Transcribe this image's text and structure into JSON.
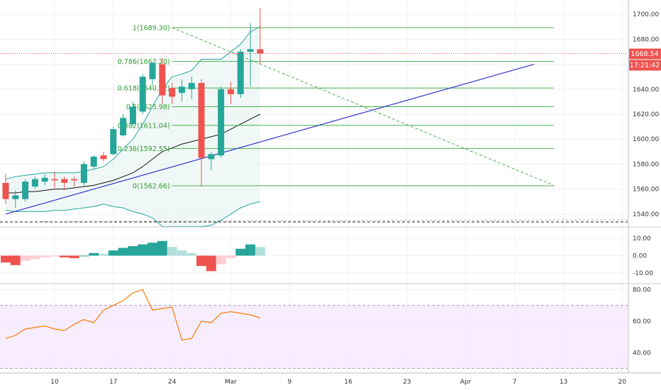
{
  "chart_data": {
    "type": "candlestick",
    "price_axis": {
      "range": [
        1532,
        1708
      ],
      "ticks": [
        "1700.00",
        "1680.00",
        "1660.00",
        "1640.00",
        "1620.00",
        "1600.00",
        "1580.00",
        "1560.00",
        "1540.00"
      ],
      "tick_values": [
        1700,
        1680,
        1660,
        1640,
        1620,
        1600,
        1580,
        1560,
        1540
      ]
    },
    "last_price_label": "1668.54",
    "countdown_label": "17:21:42",
    "date_axis": {
      "labels": [
        "10",
        "17",
        "24",
        "Mar",
        "9",
        "16",
        "23",
        "Apr",
        "7",
        "13",
        "20"
      ],
      "bar_index": [
        5,
        11,
        17,
        23,
        29,
        35,
        41,
        47,
        52,
        57,
        63
      ]
    },
    "candles": [
      {
        "o": 1565,
        "h": 1572,
        "l": 1548,
        "c": 1552
      },
      {
        "o": 1552,
        "h": 1559,
        "l": 1545,
        "c": 1555
      },
      {
        "o": 1552,
        "h": 1568,
        "l": 1550,
        "c": 1566
      },
      {
        "o": 1562,
        "h": 1570,
        "l": 1560,
        "c": 1568
      },
      {
        "o": 1566,
        "h": 1572,
        "l": 1563,
        "c": 1569
      },
      {
        "o": 1568,
        "h": 1574,
        "l": 1561,
        "c": 1567
      },
      {
        "o": 1568,
        "h": 1570,
        "l": 1559,
        "c": 1565
      },
      {
        "o": 1568,
        "h": 1570,
        "l": 1562,
        "c": 1567
      },
      {
        "o": 1565,
        "h": 1582,
        "l": 1563,
        "c": 1580
      },
      {
        "o": 1578,
        "h": 1587,
        "l": 1576,
        "c": 1586
      },
      {
        "o": 1587,
        "h": 1590,
        "l": 1582,
        "c": 1584
      },
      {
        "o": 1588,
        "h": 1610,
        "l": 1587,
        "c": 1608
      },
      {
        "o": 1603,
        "h": 1620,
        "l": 1602,
        "c": 1617
      },
      {
        "o": 1612,
        "h": 1630,
        "l": 1610,
        "c": 1626
      },
      {
        "o": 1622,
        "h": 1652,
        "l": 1620,
        "c": 1650
      },
      {
        "o": 1648,
        "h": 1662,
        "l": 1643,
        "c": 1661
      },
      {
        "o": 1660,
        "h": 1665,
        "l": 1628,
        "c": 1635
      },
      {
        "o": 1641,
        "h": 1645,
        "l": 1628,
        "c": 1634
      },
      {
        "o": 1637,
        "h": 1648,
        "l": 1630,
        "c": 1642
      },
      {
        "o": 1640,
        "h": 1650,
        "l": 1632,
        "c": 1645
      },
      {
        "o": 1645,
        "h": 1648,
        "l": 1562,
        "c": 1585
      },
      {
        "o": 1584,
        "h": 1590,
        "l": 1575,
        "c": 1588
      },
      {
        "o": 1587,
        "h": 1642,
        "l": 1585,
        "c": 1640
      },
      {
        "o": 1640,
        "h": 1646,
        "l": 1628,
        "c": 1636
      },
      {
        "o": 1636,
        "h": 1672,
        "l": 1633,
        "c": 1670
      },
      {
        "o": 1670,
        "h": 1693,
        "l": 1642,
        "c": 1672
      },
      {
        "o": 1672,
        "h": 1705,
        "l": 1660,
        "c": 1668.54
      }
    ],
    "bollinger": {
      "upper": [
        1568,
        1570,
        1571,
        1572,
        1573,
        1573,
        1573,
        1573,
        1574,
        1576,
        1578,
        1584,
        1592,
        1600,
        1612,
        1626,
        1640,
        1650,
        1652,
        1655,
        1664,
        1664,
        1664,
        1670,
        1676,
        1686,
        1690
      ],
      "middle": [
        1557,
        1557,
        1558,
        1558,
        1559,
        1560,
        1560,
        1561,
        1562,
        1563,
        1565,
        1567,
        1570,
        1573,
        1578,
        1584,
        1590,
        1593,
        1596,
        1598,
        1600,
        1602,
        1604,
        1608,
        1612,
        1616,
        1620
      ],
      "lower": [
        1543,
        1542,
        1542,
        1542,
        1542,
        1543,
        1543,
        1544,
        1545,
        1546,
        1548,
        1546,
        1545,
        1542,
        1540,
        1537,
        1530,
        1530,
        1530,
        1530,
        1530,
        1531,
        1535,
        1540,
        1545,
        1548,
        1550
      ]
    },
    "trendline": {
      "from": {
        "bar": 0,
        "price": 1540
      },
      "to": {
        "bar": 54,
        "price": 1660
      }
    },
    "dashed_trendline": {
      "from": {
        "bar": 17,
        "price": 1689.3
      },
      "to": {
        "bar": 56,
        "price": 1563
      }
    },
    "fibonacci": [
      {
        "label": "1(1689.30)",
        "price": 1689.3
      },
      {
        "label": "0.786(1662.20)",
        "price": 1662.2
      },
      {
        "label": "0.618(1640.92)",
        "price": 1640.92
      },
      {
        "label": "0.5(1625.98)",
        "price": 1625.98
      },
      {
        "label": "0.382(1611.04)",
        "price": 1611.04
      },
      {
        "label": "0.236(1592.55)",
        "price": 1592.55
      },
      {
        "label": "0(1562.66)",
        "price": 1562.66
      }
    ],
    "histogram": {
      "ticks": [
        "10.00",
        "0.00",
        "-10.00"
      ],
      "tick_values": [
        10,
        0,
        -10
      ],
      "range": [
        -15,
        15
      ],
      "values": [
        -4,
        -5.5,
        -3,
        -2,
        -1,
        -0.5,
        -1,
        -1.5,
        0,
        1.5,
        1,
        3,
        4.5,
        5.5,
        6.5,
        7.5,
        8.5,
        5,
        3,
        1.5,
        -6,
        -9,
        -5,
        -1.5,
        4,
        6.5,
        5
      ]
    },
    "rsi": {
      "ticks": [
        "80.00",
        "60.00",
        "40.00"
      ],
      "tick_values": [
        80,
        60,
        40
      ],
      "range": [
        28,
        82
      ],
      "band": [
        30,
        70
      ],
      "values": [
        49,
        51,
        55,
        56,
        57,
        55,
        54,
        58,
        61,
        59,
        67,
        70,
        73,
        78,
        80,
        67,
        68,
        69,
        48,
        49,
        60,
        59,
        65,
        66,
        65,
        64,
        62
      ]
    },
    "colors": {
      "up": "#26a69a",
      "down": "#ef5350",
      "hist_up_strong": "#26a69a",
      "hist_up_weak": "#b2dfdb",
      "hist_down_strong": "#ef5350",
      "hist_down_weak": "#ffcdd2",
      "bollinger_line": "#26a69a",
      "bollinger_fill": "#e6f4f1",
      "middle_line": "#111111",
      "trendline": "#3333cc",
      "fib": "#4caf50",
      "rsi_line": "#f57c00",
      "rsi_fill": "#f3e5ff",
      "last_price": "#ef5350"
    }
  }
}
